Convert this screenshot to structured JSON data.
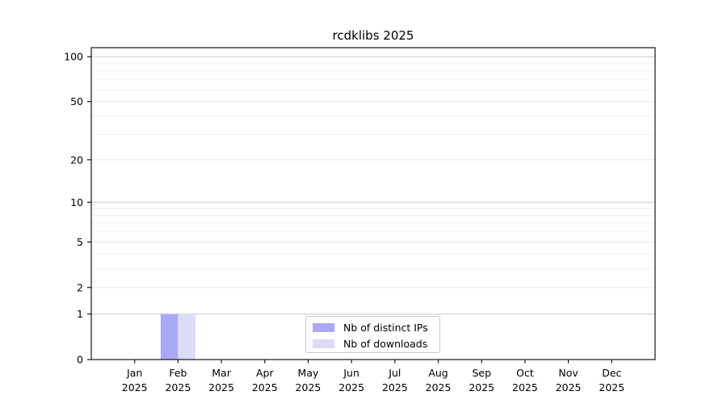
{
  "chart_data": {
    "type": "bar",
    "title": "rcdklibs 2025",
    "year_label": "2025",
    "categories": [
      "Jan",
      "Feb",
      "Mar",
      "Apr",
      "May",
      "Jun",
      "Jul",
      "Aug",
      "Sep",
      "Oct",
      "Nov",
      "Dec"
    ],
    "series": [
      {
        "name": "Nb of distinct IPs",
        "color": "#a9a9f5",
        "values": [
          0,
          1,
          0,
          0,
          0,
          0,
          0,
          0,
          0,
          0,
          0,
          0
        ]
      },
      {
        "name": "Nb of downloads",
        "color": "#dcdcf8",
        "values": [
          0,
          1,
          0,
          0,
          0,
          0,
          0,
          0,
          0,
          0,
          0,
          0
        ]
      }
    ],
    "xlabel": "",
    "ylabel": "",
    "yscale": "log1p",
    "ylim": [
      0,
      115
    ],
    "yticks": [
      0,
      1,
      2,
      5,
      10,
      20,
      50,
      100
    ],
    "ytick_labels": [
      "0",
      "1",
      "2",
      "5",
      "10",
      "20",
      "50",
      "100"
    ],
    "yticks_minor": [
      3,
      4,
      6,
      7,
      8,
      9,
      30,
      40,
      60,
      70,
      80,
      90
    ],
    "grid": true,
    "legend_position": "inside-bottom-center",
    "colors": {
      "spine": "#000000",
      "grid_decade": "#c9c9c9",
      "grid_labeled": "#e7e7e7",
      "grid_minor": "#f1f1f1",
      "tick_text": "#000000",
      "background": "#ffffff",
      "legend_border": "#c8c8c8"
    }
  }
}
